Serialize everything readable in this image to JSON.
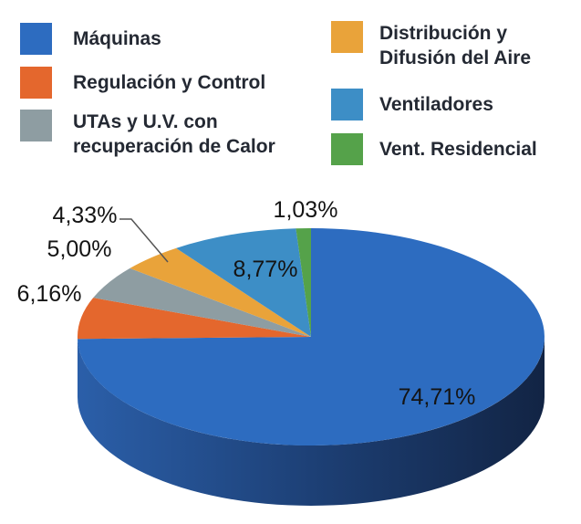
{
  "chart_data": {
    "type": "pie",
    "style": "3d",
    "title": "",
    "unit": "%",
    "start_angle_deg": 90,
    "direction": "clockwise",
    "background": "#ffffff",
    "slices": [
      {
        "key": "maquinas",
        "name": "Máquinas",
        "value": 74.71,
        "label": "74,71%",
        "color": "#2d6cc0"
      },
      {
        "key": "regulacion-y-control",
        "name": "Regulación y Control",
        "value": 6.16,
        "label": "6,16%",
        "color": "#e4672d"
      },
      {
        "key": "utas-uv-recuperacion-calor",
        "name": "UTAs y U.V. con recuperación de Calor",
        "value": 5.0,
        "label": "5,00%",
        "color": "#8e9da2"
      },
      {
        "key": "distribucion-difusion-aire",
        "name": "Distribución y Difusión del Aire",
        "value": 4.33,
        "label": "4,33%",
        "color": "#e9a33a"
      },
      {
        "key": "ventiladores",
        "name": "Ventiladores",
        "value": 8.77,
        "label": "8,77%",
        "color": "#3d8ec6"
      },
      {
        "key": "vent-residencial",
        "name": "Vent. Residencial",
        "value": 1.03,
        "label": "1,03%",
        "color": "#55a24a"
      }
    ],
    "side_colors": [
      "#2b5fa9",
      "#1d4076",
      "#122444"
    ],
    "legend_position": "top",
    "text_color": "#242933",
    "label_color": "#141414"
  }
}
